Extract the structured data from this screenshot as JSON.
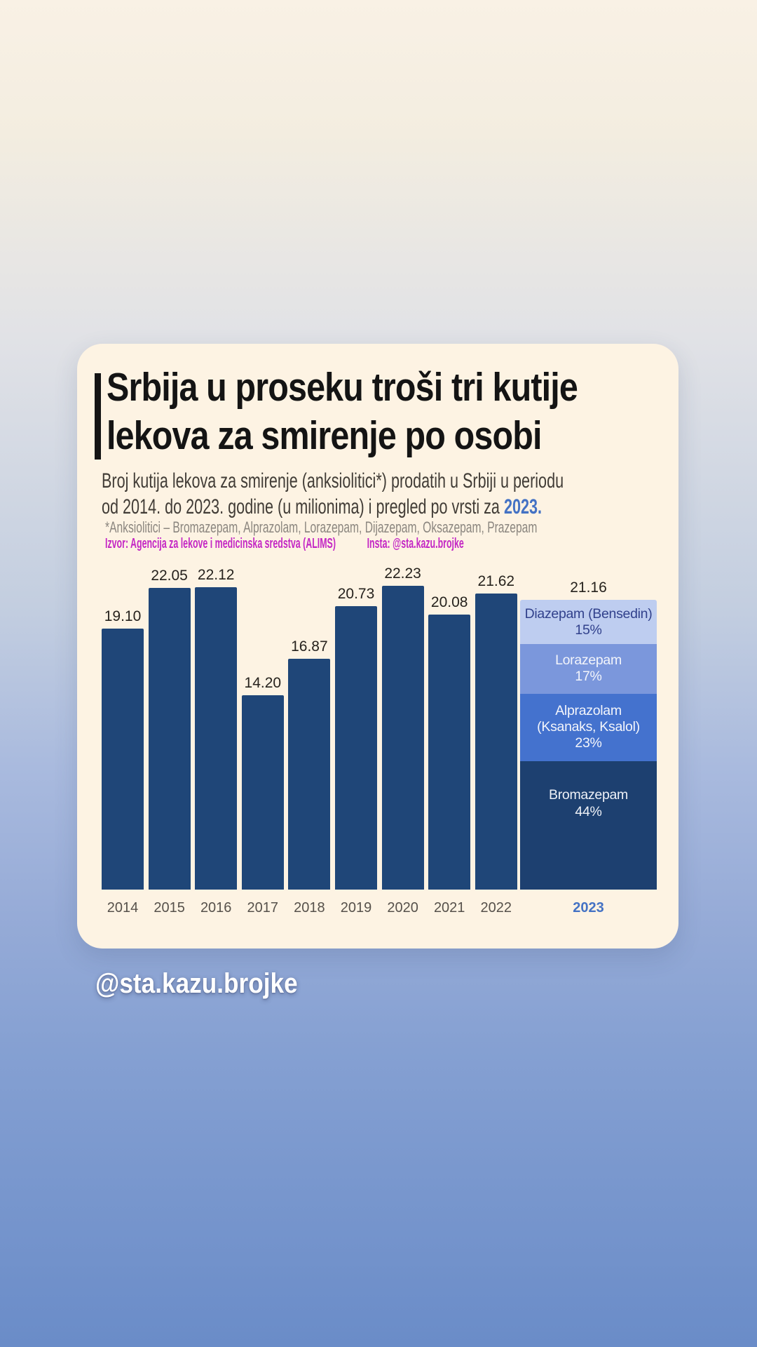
{
  "card": {
    "title_line1": "Srbija u proseku troši tri kutije",
    "title_line2": "lekova za smirenje po osobi",
    "subtitle_line1": "Broj kutija lekova za smirenje (anksiolitici*) prodatih u Srbiji u periodu",
    "subtitle_line2_prefix": "od 2014. do 2023. godine (u milionima) i pregled po vrsti za ",
    "subtitle_highlight": "2023.",
    "footnote": "*Anksiolitici – Bromazepam, Alprazolam, Lorazepam, Dijazepam, Oksazepam, Prazepam",
    "source_label": "Izvor: Agencija za lekove i medicinska sredstva (ALIMS)",
    "insta_label": "Insta: @sta.kazu.brojke"
  },
  "footer": {
    "handle": "@sta.kazu.brojke"
  },
  "colors": {
    "card_background": "#fdf3e3",
    "bar_navy": "#1f4678",
    "accent_blue": "#4472c4",
    "source_magenta": "#c427c4",
    "title_black": "#141414",
    "subtitle_gray": "#413c36",
    "footnote_gray": "#8b867f",
    "axis_label": "#56514b",
    "background_top": "#f9f1e5",
    "background_bottom": "#6a8cc8"
  },
  "chart_data": {
    "type": "bar",
    "title": "Srbija u proseku troši tri kutije lekova za smirenje po osobi",
    "xlabel": "",
    "ylabel": "",
    "grid": false,
    "legend": false,
    "ylim": [
      0,
      24
    ],
    "categories": [
      "2014",
      "2015",
      "2016",
      "2017",
      "2018",
      "2019",
      "2020",
      "2021",
      "2022",
      "2023"
    ],
    "values": [
      19.1,
      22.05,
      22.12,
      14.2,
      16.87,
      20.73,
      22.23,
      20.08,
      21.62,
      21.16
    ],
    "value_labels": [
      "19.10",
      "22.05",
      "22.12",
      "14.20",
      "16.87",
      "20.73",
      "22.23",
      "20.08",
      "21.62",
      "21.16"
    ],
    "bar_color": "#1f4678",
    "highlight_category": "2023",
    "stack_for_2023": {
      "total": 21.16,
      "total_label": "21.16",
      "segments": [
        {
          "name_lines": [
            "Diazepam (Bensedin)"
          ],
          "pct": 15,
          "pct_label": "15%",
          "color": "#becdf0",
          "text_color": "#31418c"
        },
        {
          "name_lines": [
            "Lorazepam"
          ],
          "pct": 17,
          "pct_label": "17%",
          "color": "#7b97dc",
          "text_color": "#f3f5fb"
        },
        {
          "name_lines": [
            "Alprazolam",
            "(Ksanaks, Ksalol)"
          ],
          "pct": 23,
          "pct_label": "23%",
          "color": "#4472ce",
          "text_color": "#f3f5fb"
        },
        {
          "name_lines": [
            "Bromazepam"
          ],
          "pct": 44,
          "pct_label": "44%",
          "color": "#1d4070",
          "text_color": "#eef1f7"
        }
      ]
    }
  }
}
